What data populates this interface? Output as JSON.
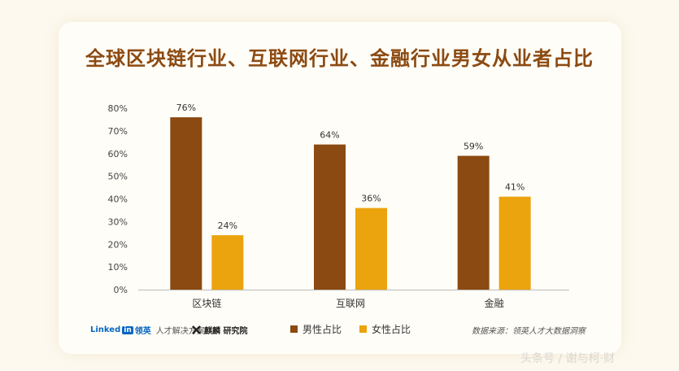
{
  "title": "全球区块链行业、互联网行业、金融行业男女从业者占比",
  "chart_data": {
    "type": "bar",
    "categories": [
      "区块链",
      "互联网",
      "金融"
    ],
    "series": [
      {
        "name": "男性占比",
        "values": [
          76,
          64,
          59
        ],
        "labels": [
          "76%",
          "64%",
          "59%"
        ]
      },
      {
        "name": "女性占比",
        "values": [
          24,
          36,
          41
        ],
        "labels": [
          "24%",
          "36%",
          "41%"
        ]
      }
    ],
    "y_ticks": [
      "0%",
      "10%",
      "20%",
      "30%",
      "40%",
      "50%",
      "60%",
      "70%",
      "80%"
    ],
    "ylim": [
      0,
      80
    ],
    "grid": false,
    "legend_position": "bottom"
  },
  "colors": {
    "male": "#8b4a11",
    "female": "#eba30e",
    "title": "#8c4a12"
  },
  "footer": {
    "linkedin_word": "Linked",
    "linkedin_in": "in",
    "linkedin_cn": "领英",
    "linkedin_tagline": "人才解决方案",
    "partner_icon": "cross-logo-icon",
    "partner_name": "麒麟 研究院",
    "source": "数据来源：领英人才大数据洞察"
  },
  "watermark": "头条号 / 谢与柯·财"
}
